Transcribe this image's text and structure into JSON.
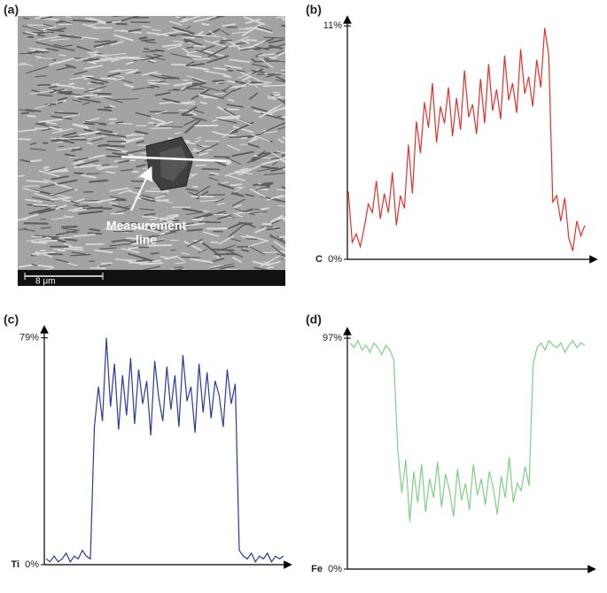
{
  "image_panel": {
    "panel_label": "(a)",
    "annotation": [
      "Measurement",
      "line"
    ],
    "scale_bar": "8 μm"
  },
  "chart_data": [
    {
      "type": "line",
      "panel_label": "(b)",
      "ylabel": "C",
      "color": "#e3302b",
      "ylim": [
        0,
        11.3
      ],
      "yticks": [
        {
          "value": 0,
          "label": "0%"
        },
        {
          "value": 11,
          "label": "11%"
        }
      ],
      "values": [
        3.2,
        0.8,
        1.2,
        0.6,
        1.5,
        2.6,
        2.2,
        3.7,
        1.9,
        3.1,
        2.2,
        4.1,
        1.6,
        3.0,
        2.4,
        5.4,
        3.1,
        6.5,
        5.0,
        7.4,
        6.2,
        8.3,
        5.5,
        7.2,
        6.4,
        8.1,
        5.8,
        7.6,
        6.1,
        8.9,
        6.7,
        7.3,
        5.9,
        8.5,
        6.4,
        9.2,
        7.0,
        8.0,
        6.6,
        9.6,
        7.5,
        8.3,
        6.9,
        9.9,
        7.8,
        8.6,
        7.2,
        9.4,
        8.1,
        10.9,
        9.6,
        2.7,
        3.0,
        1.8,
        2.9,
        1.0,
        0.4,
        1.8,
        1.1,
        1.6
      ]
    },
    {
      "type": "line",
      "panel_label": "(c)",
      "ylabel": "Ti",
      "color": "#2b3a9a",
      "ylim": [
        0,
        82
      ],
      "yticks": [
        {
          "value": 0,
          "label": "0%"
        },
        {
          "value": 79,
          "label": "79%"
        }
      ],
      "values": [
        2,
        1,
        3,
        1,
        2,
        4,
        1,
        3,
        2,
        5,
        3,
        2,
        48,
        62,
        50,
        79,
        55,
        70,
        47,
        66,
        52,
        72,
        49,
        68,
        56,
        64,
        45,
        71,
        58,
        50,
        69,
        54,
        66,
        48,
        73,
        57,
        62,
        46,
        70,
        53,
        67,
        51,
        64,
        59,
        48,
        68,
        56,
        63,
        5,
        3,
        2,
        4,
        1,
        3,
        2,
        4,
        1,
        3,
        2,
        3
      ]
    },
    {
      "type": "line",
      "panel_label": "(d)",
      "ylabel": "Fe",
      "color": "#7fcf85",
      "ylim": [
        0,
        100
      ],
      "yticks": [
        {
          "value": 0,
          "label": "0%"
        },
        {
          "value": 97,
          "label": "97%"
        }
      ],
      "values": [
        95,
        93,
        96,
        92,
        94,
        91,
        95,
        93,
        90,
        94,
        92,
        88,
        50,
        32,
        46,
        20,
        41,
        28,
        44,
        24,
        38,
        30,
        45,
        26,
        40,
        33,
        22,
        42,
        29,
        36,
        25,
        44,
        31,
        38,
        27,
        41,
        34,
        23,
        39,
        30,
        47,
        28,
        36,
        33,
        43,
        35,
        86,
        93,
        95,
        92,
        96,
        94,
        93,
        95,
        91,
        94,
        96,
        93,
        95,
        94
      ]
    }
  ]
}
